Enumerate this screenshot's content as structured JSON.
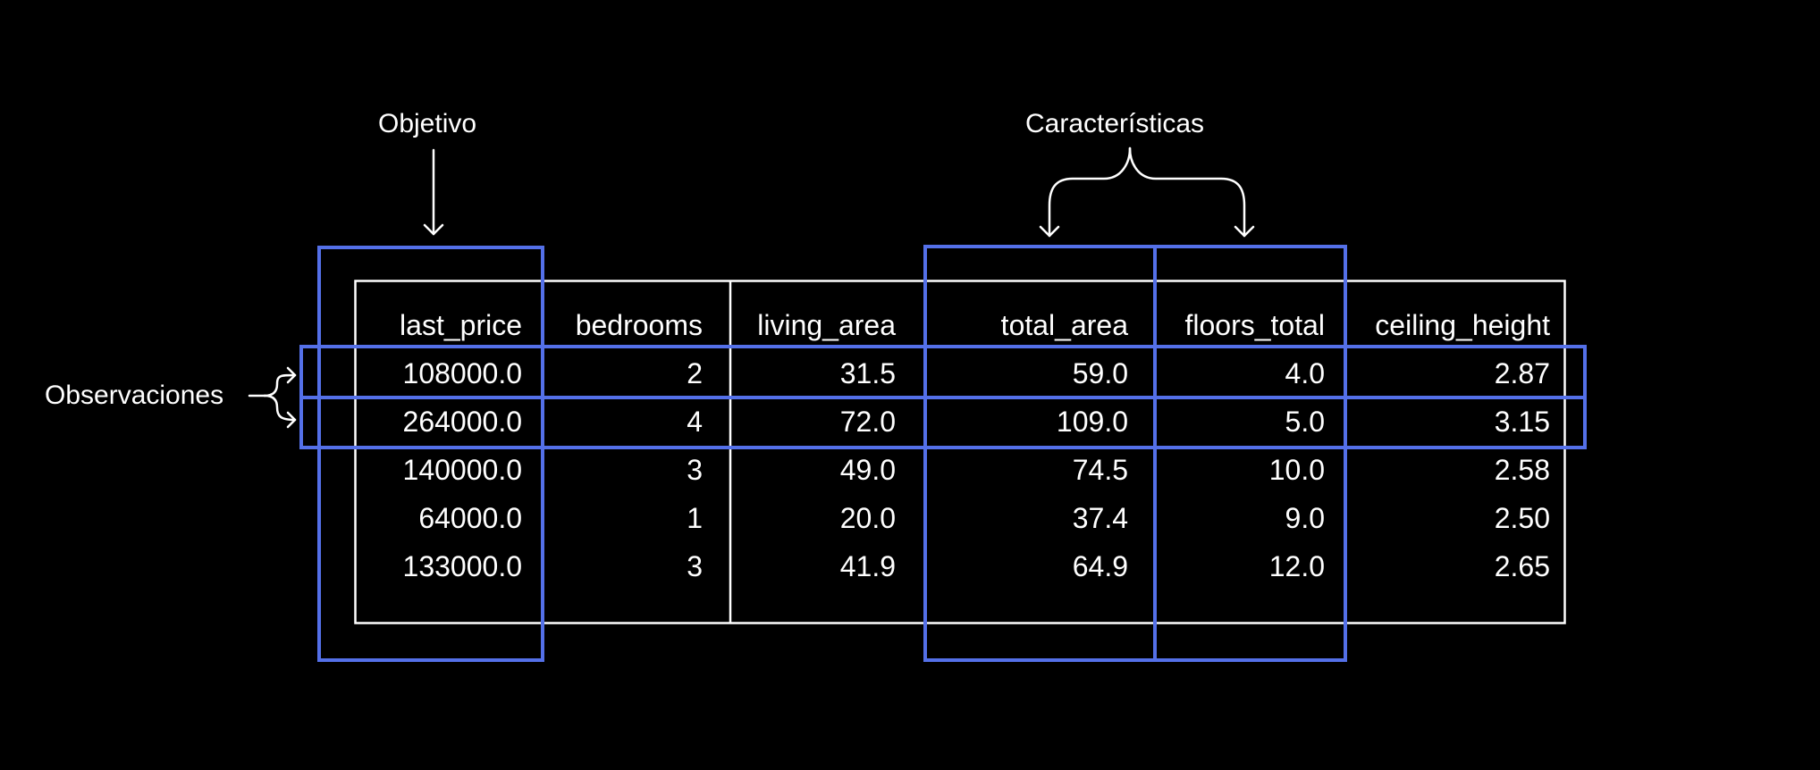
{
  "colors": {
    "background": "#000000",
    "foreground": "#ffffff",
    "highlight": "#5470e8"
  },
  "annotations": {
    "target": "Objetivo",
    "features": "Características",
    "observations": "Observaciones"
  },
  "table": {
    "columns": [
      "last_price",
      "bedrooms",
      "living_area",
      "total_area",
      "floors_total",
      "ceiling_height"
    ],
    "rows": [
      [
        "108000.0",
        "2",
        "31.5",
        "59.0",
        "4.0",
        "2.87"
      ],
      [
        "264000.0",
        "4",
        "72.0",
        "109.0",
        "5.0",
        "3.15"
      ],
      [
        "140000.0",
        "3",
        "49.0",
        "74.5",
        "10.0",
        "2.58"
      ],
      [
        "64000.0",
        "1",
        "20.0",
        "37.4",
        "9.0",
        "2.50"
      ],
      [
        "133000.0",
        "3",
        "41.9",
        "64.9",
        "12.0",
        "2.65"
      ]
    ]
  }
}
